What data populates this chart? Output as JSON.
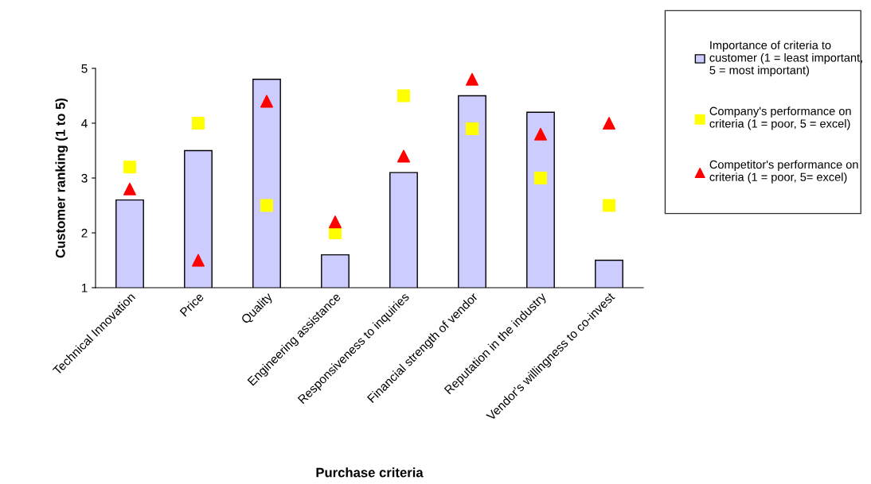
{
  "chart_data": {
    "type": "bar",
    "xlabel": "Purchase criteria",
    "ylabel": "Customer ranking (1 to 5)",
    "categories": [
      "Technical Innovation",
      "Price",
      "Quality",
      "Engineering assistance",
      "Responsiveness to inquiries",
      "Financial strength of vendor",
      "Reputation in the industry",
      "Vendor's willingness to co-invest"
    ],
    "series": [
      {
        "name": "Importance of criteria to\ncustomer (1 = least important,\n5 = most important)",
        "color": "#ccccff",
        "values": [
          2.6,
          3.5,
          4.8,
          1.6,
          3.1,
          4.5,
          4.2,
          1.5
        ]
      },
      {
        "name": "Company's performance on\ncriteria (1 = poor, 5 = excel)",
        "type": "scatter",
        "marker": "square",
        "color": "#ffff00",
        "values": [
          3.2,
          4.0,
          2.5,
          2.0,
          4.5,
          3.9,
          3.0,
          2.5
        ]
      },
      {
        "name": "Competitor's performance on\ncriteria (1 = poor, 5= excel)",
        "type": "scatter",
        "marker": "triangle",
        "color": "#ff0000",
        "values": [
          2.8,
          1.5,
          4.4,
          2.2,
          3.4,
          4.8,
          3.8,
          4.0
        ]
      }
    ],
    "ylim": [
      1,
      5
    ],
    "yticks": [
      1,
      2,
      3,
      4,
      5
    ],
    "grid": false,
    "legend": "right"
  }
}
